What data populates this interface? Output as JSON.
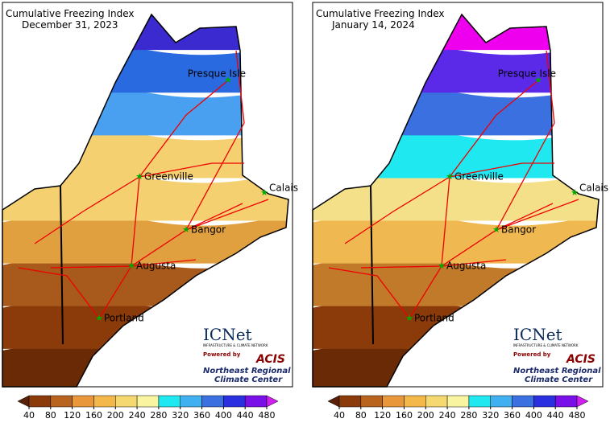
{
  "panels": [
    {
      "title": "Cumulative Freezing Index",
      "date": "December 31, 2023",
      "bands": [
        "#6a2a06",
        "#8b3a0a",
        "#a85a1c",
        "#e0a040",
        "#f5d070",
        "#f5d070",
        "#4aa0f0",
        "#2a6ae0",
        "#3a2ad0"
      ]
    },
    {
      "title": "Cumulative Freezing Index",
      "date": "January 14, 2024",
      "bands": [
        "#6a2a06",
        "#8b3a0a",
        "#c07a2a",
        "#f0b850",
        "#f5e08a",
        "#20e8f0",
        "#3a70e0",
        "#5a2ae8",
        "#ee00ee"
      ]
    }
  ],
  "cities": [
    "Presque Isle",
    "Greenville",
    "Calais",
    "Bangor",
    "Augusta",
    "Portland"
  ],
  "logo": {
    "name": "ICNet",
    "tagline": "INFRASTRUCTURE & CLIMATE NETWORK",
    "powered": "Powered by",
    "acis": "ACIS",
    "center1": "Northeast Regional",
    "center2": "Climate Center"
  },
  "colorbar": {
    "colors": [
      "#5a2008",
      "#8b3a0a",
      "#b8641e",
      "#e8983a",
      "#f4b84a",
      "#f6d870",
      "#f8f4a0",
      "#20e8f0",
      "#40b0f0",
      "#3a70e0",
      "#2a30e0",
      "#7a10e8",
      "#d020f0"
    ],
    "ticks": [
      40,
      80,
      120,
      160,
      200,
      240,
      280,
      320,
      360,
      400,
      440,
      480
    ]
  }
}
